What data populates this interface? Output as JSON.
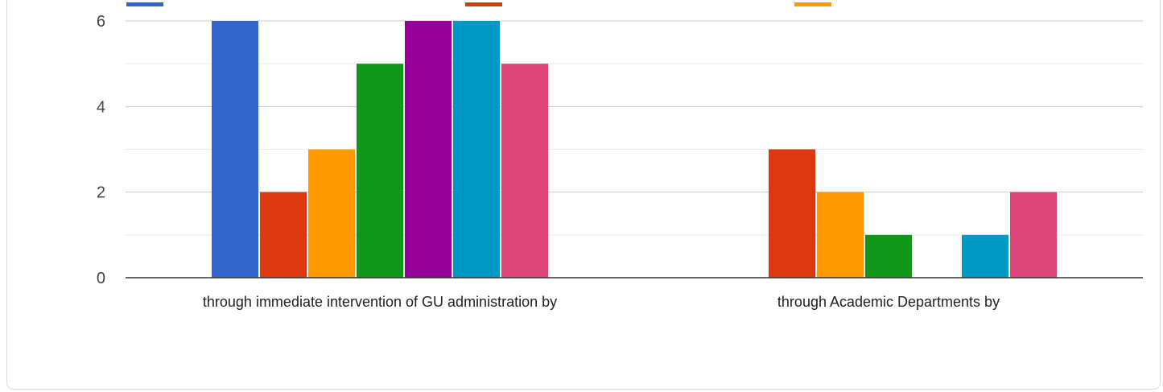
{
  "chart_data": {
    "type": "bar",
    "categories": [
      "through immediate intervention of GU administration by",
      "through Academic Departments by"
    ],
    "series": [
      {
        "color": "#3366cc",
        "values": [
          6,
          0
        ]
      },
      {
        "color": "#dc3912",
        "values": [
          2,
          3
        ]
      },
      {
        "color": "#ff9900",
        "values": [
          3,
          2
        ]
      },
      {
        "color": "#109618",
        "values": [
          5,
          1
        ]
      },
      {
        "color": "#990099",
        "values": [
          6,
          0
        ]
      },
      {
        "color": "#0099c6",
        "values": [
          6,
          1
        ]
      },
      {
        "color": "#dd4477",
        "values": [
          5,
          2
        ]
      }
    ],
    "y_ticks": [
      0,
      2,
      4,
      6
    ],
    "ylim": [
      0,
      6
    ],
    "grid": true,
    "legend": "top"
  }
}
